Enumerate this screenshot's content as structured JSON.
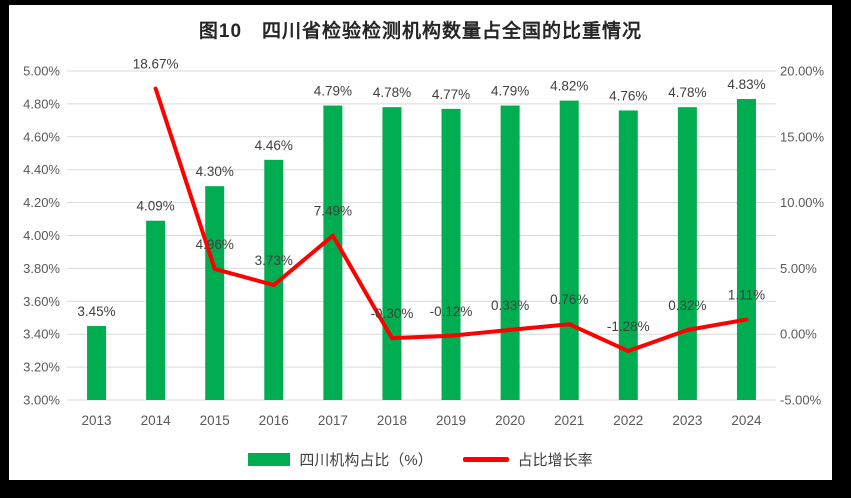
{
  "title": "图10　四川省检验检测机构数量占全国的比重情况",
  "legend": {
    "bar_label": "四川机构占比（%）",
    "line_label": "占比增长率"
  },
  "colors": {
    "bar": "#00AD50",
    "line": "#FF0000",
    "grid": "#D9D9D9",
    "axis_text": "#595959",
    "data_label_text": "#404040",
    "title_text": "#262626",
    "frame": "#000000",
    "background": "#FFFFFF"
  },
  "chart_data": {
    "type": "bar+line",
    "title": "图10　四川省检验检测机构数量占全国的比重情况",
    "categories": [
      "2013",
      "2014",
      "2015",
      "2016",
      "2017",
      "2018",
      "2019",
      "2020",
      "2021",
      "2022",
      "2023",
      "2024"
    ],
    "series": [
      {
        "name": "四川机构占比（%）",
        "type": "bar",
        "axis": "left",
        "values": [
          3.45,
          4.09,
          4.3,
          4.46,
          4.79,
          4.78,
          4.77,
          4.79,
          4.82,
          4.76,
          4.78,
          4.83
        ],
        "labels": [
          "3.45%",
          "4.09%",
          "4.30%",
          "4.46%",
          "4.79%",
          "4.78%",
          "4.77%",
          "4.79%",
          "4.82%",
          "4.76%",
          "4.78%",
          "4.83%"
        ]
      },
      {
        "name": "占比增长率",
        "type": "line",
        "axis": "right",
        "values": [
          null,
          18.67,
          4.96,
          3.73,
          7.49,
          -0.3,
          -0.12,
          0.33,
          0.76,
          -1.28,
          0.32,
          1.11
        ],
        "labels": [
          null,
          "18.67%",
          "4.96%",
          "3.73%",
          "7.49%",
          "-0.30%",
          "-0.12%",
          "0.33%",
          "0.76%",
          "-1.28%",
          "0.32%",
          "1.11%"
        ]
      }
    ],
    "left_axis": {
      "min": 3.0,
      "max": 5.0,
      "step": 0.2,
      "tick_labels": [
        "3.00%",
        "3.20%",
        "3.40%",
        "3.60%",
        "3.80%",
        "4.00%",
        "4.20%",
        "4.40%",
        "4.60%",
        "4.80%",
        "5.00%"
      ]
    },
    "right_axis": {
      "min": -5.0,
      "max": 20.0,
      "step": 5.0,
      "tick_labels": [
        "-5.00%",
        "0.00%",
        "5.00%",
        "10.00%",
        "15.00%",
        "20.00%"
      ]
    },
    "grid": true,
    "legend_position": "bottom"
  }
}
